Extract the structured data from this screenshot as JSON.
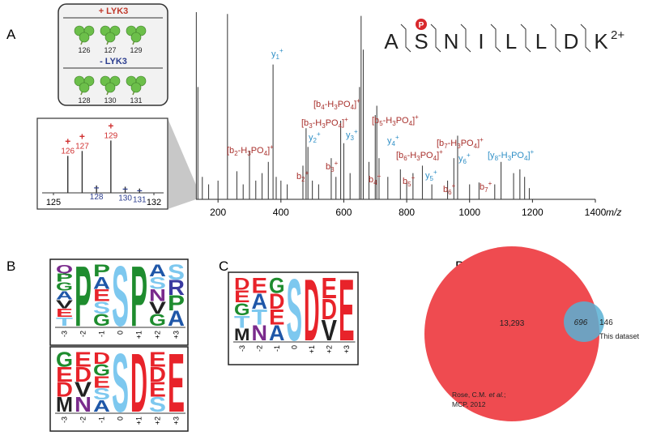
{
  "panel_labels": [
    "A",
    "B",
    "C",
    "D"
  ],
  "panel_a": {
    "conditions": [
      {
        "label": "+ LYK3",
        "color": "#c0392b",
        "channels": [
          126,
          127,
          129
        ]
      },
      {
        "label": "- LYK3",
        "color": "#2c3e8f",
        "channels": [
          128,
          130,
          131
        ]
      }
    ],
    "reporter": {
      "xlim": [
        125,
        132
      ],
      "xticks": [
        125,
        132
      ],
      "ylim": [
        0,
        100
      ],
      "ions": [
        {
          "sign": "+",
          "mz": 126,
          "intensity": 60,
          "color": "#d03030"
        },
        {
          "sign": "+",
          "mz": 127,
          "intensity": 68,
          "color": "#d03030"
        },
        {
          "sign": "+",
          "mz": 129,
          "intensity": 85,
          "color": "#d03030"
        },
        {
          "sign": "–",
          "mz": 128,
          "intensity": 12,
          "color": "#2c3e8f"
        },
        {
          "sign": "–",
          "mz": 130,
          "intensity": 10,
          "color": "#2c3e8f"
        },
        {
          "sign": "–",
          "mz": 131,
          "intensity": 7,
          "color": "#2c3e8f"
        }
      ]
    },
    "spectrum": {
      "xlim": [
        130,
        1400
      ],
      "xticks": [
        200,
        400,
        600,
        800,
        1000,
        1200,
        1400
      ],
      "xlabel": "m/z",
      "ylim": [
        0,
        100
      ],
      "peaks_mz": [
        131,
        136,
        150,
        170,
        200,
        230,
        260,
        280,
        300,
        320,
        340,
        360,
        375,
        385,
        400,
        420,
        470,
        480,
        486,
        500,
        520,
        560,
        575,
        590,
        600,
        620,
        650,
        655,
        662,
        680,
        700,
        705,
        712,
        740,
        780,
        800,
        820,
        850,
        880,
        930,
        950,
        962,
        1000,
        1030,
        1080,
        1100,
        1140,
        1160,
        1175,
        1190
      ],
      "peaks_intensity": [
        100,
        60,
        12,
        8,
        10,
        99,
        15,
        8,
        26,
        10,
        14,
        20,
        72,
        12,
        10,
        8,
        18,
        38,
        28,
        10,
        8,
        22,
        12,
        42,
        30,
        14,
        60,
        98,
        80,
        20,
        45,
        50,
        22,
        12,
        16,
        10,
        14,
        18,
        8,
        10,
        22,
        34,
        8,
        9,
        8,
        20,
        14,
        16,
        12,
        6
      ]
    },
    "peptide": {
      "residues": [
        "A",
        "S",
        "N",
        "I",
        "L",
        "L",
        "D",
        "K"
      ],
      "phospho": "P",
      "charge": "2+"
    },
    "annotations": [
      {
        "text": [
          "y",
          "1"
        ],
        "charge": "+",
        "color": "#2f8fc6"
      },
      {
        "text": [
          "y",
          "2"
        ],
        "charge": "+",
        "color": "#2f8fc6"
      },
      {
        "text": [
          "[b",
          "2",
          "-H",
          "3",
          "PO",
          "4",
          "]"
        ],
        "charge": "+",
        "color": "#a8302c"
      },
      {
        "text": [
          "[b",
          "3",
          "-H",
          "3",
          "PO",
          "4",
          "]"
        ],
        "charge": "+",
        "color": "#a8302c"
      },
      {
        "text": [
          "[b",
          "4",
          "-H",
          "3",
          "PO",
          "4",
          "]"
        ],
        "charge": "+",
        "color": "#a8302c"
      },
      {
        "text": [
          "y",
          "3"
        ],
        "charge": "+",
        "color": "#2f8fc6"
      },
      {
        "text": [
          "b",
          "2"
        ],
        "charge": "+",
        "color": "#a8302c"
      },
      {
        "text": [
          "b",
          "3"
        ],
        "charge": "+",
        "color": "#a8302c"
      },
      {
        "text": [
          "b",
          "4"
        ],
        "charge": "+",
        "color": "#a8302c"
      },
      {
        "text": [
          "[b",
          "5",
          "-H",
          "3",
          "PO",
          "4",
          "]"
        ],
        "charge": "+",
        "color": "#a8302c"
      },
      {
        "text": [
          "y",
          "4"
        ],
        "charge": "+",
        "color": "#2f8fc6"
      },
      {
        "text": [
          "[b",
          "6",
          "-H",
          "3",
          "PO",
          "4",
          "]"
        ],
        "charge": "+",
        "color": "#a8302c"
      },
      {
        "text": [
          "b",
          "5"
        ],
        "charge": "+",
        "color": "#a8302c"
      },
      {
        "text": [
          "y",
          "5"
        ],
        "charge": "+",
        "color": "#2f8fc6"
      },
      {
        "text": [
          "[b",
          "7",
          "-H",
          "3",
          "PO",
          "4",
          "]"
        ],
        "charge": "+",
        "color": "#a8302c"
      },
      {
        "text": [
          "y",
          "6"
        ],
        "charge": "+",
        "color": "#2f8fc6"
      },
      {
        "text": [
          "b",
          "6"
        ],
        "charge": "+",
        "color": "#a8302c"
      },
      {
        "text": [
          "b",
          "7"
        ],
        "charge": "+",
        "color": "#a8302c"
      },
      {
        "text": [
          "[y",
          "8",
          "-H",
          "3",
          "PO",
          "4",
          "]"
        ],
        "charge": "+",
        "color": "#2f8fc6"
      }
    ]
  },
  "logo_positions": [
    "-3",
    "-2",
    "-1",
    "0",
    "+1",
    "+2",
    "+3"
  ],
  "panel_b": {
    "top": [
      [
        "Q",
        "P",
        "G",
        "A",
        "V",
        "E",
        "T"
      ],
      [
        "P"
      ],
      [
        "P",
        "A",
        "E",
        "S",
        "G"
      ],
      [
        "S"
      ],
      [
        "P"
      ],
      [
        "A",
        "S",
        "N",
        "V",
        "G"
      ],
      [
        "S",
        "R",
        "P",
        "A"
      ]
    ],
    "bottom": [
      [
        "G",
        "E",
        "D",
        "M"
      ],
      [
        "E",
        "D",
        "V",
        "N"
      ],
      [
        "D",
        "G",
        "E",
        "S",
        "A"
      ],
      [
        "S"
      ],
      [
        "D"
      ],
      [
        "E",
        "D",
        "E",
        "S"
      ],
      [
        "E"
      ]
    ]
  },
  "panel_c": {
    "logo": [
      [
        "D",
        "E",
        "G",
        "T",
        "M"
      ],
      [
        "E",
        "A",
        "T",
        "N"
      ],
      [
        "G",
        "D",
        "E",
        "A"
      ],
      [
        "S"
      ],
      [
        "D"
      ],
      [
        "E",
        "D",
        "V"
      ],
      [
        "E"
      ]
    ]
  },
  "panel_d": {
    "only_reference": "13,293",
    "overlap": "696",
    "only_this": "146",
    "this_label": "This dataset",
    "citation_line1": [
      "Rose, C.M.",
      "et al.",
      ";"
    ],
    "citation_line2": "MCP, 2012"
  }
}
